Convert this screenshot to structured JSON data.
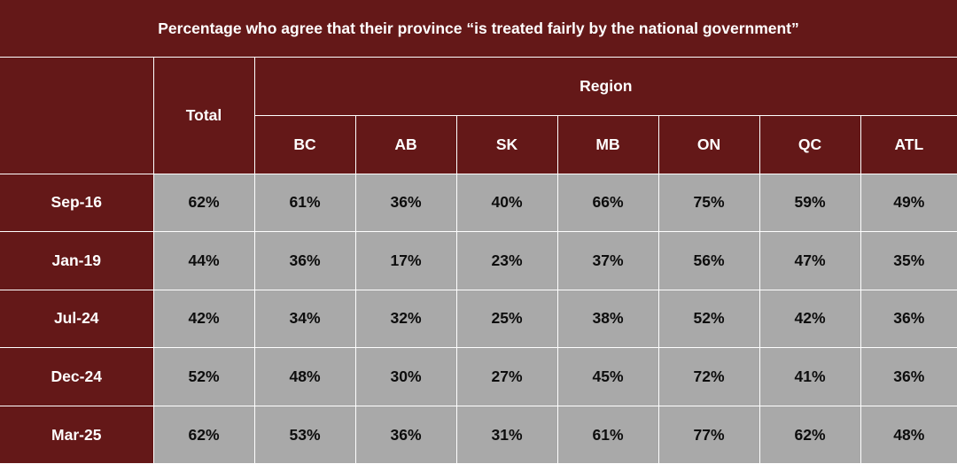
{
  "chart_data": {
    "type": "table",
    "title": "Percentage who agree that their province “is treated fairly by the national government”",
    "group_header": "Region",
    "total_header": "Total",
    "columns": [
      "BC",
      "AB",
      "SK",
      "MB",
      "ON",
      "QC",
      "ATL"
    ],
    "rows": [
      {
        "label": "Sep-16",
        "total": "62%",
        "values": [
          "61%",
          "36%",
          "40%",
          "66%",
          "75%",
          "59%",
          "49%"
        ]
      },
      {
        "label": "Jan-19",
        "total": "44%",
        "values": [
          "36%",
          "17%",
          "23%",
          "37%",
          "56%",
          "47%",
          "35%"
        ]
      },
      {
        "label": "Jul-24",
        "total": "42%",
        "values": [
          "34%",
          "32%",
          "25%",
          "38%",
          "52%",
          "42%",
          "36%"
        ]
      },
      {
        "label": "Dec-24",
        "total": "52%",
        "values": [
          "48%",
          "30%",
          "27%",
          "45%",
          "72%",
          "41%",
          "36%"
        ]
      },
      {
        "label": "Mar-25",
        "total": "62%",
        "values": [
          "53%",
          "36%",
          "31%",
          "61%",
          "77%",
          "62%",
          "48%"
        ]
      }
    ]
  },
  "colors": {
    "header_bg": "#641818",
    "cell_bg": "#a9a9a9",
    "header_text": "#ffffff",
    "cell_text": "#0d0d0d"
  }
}
